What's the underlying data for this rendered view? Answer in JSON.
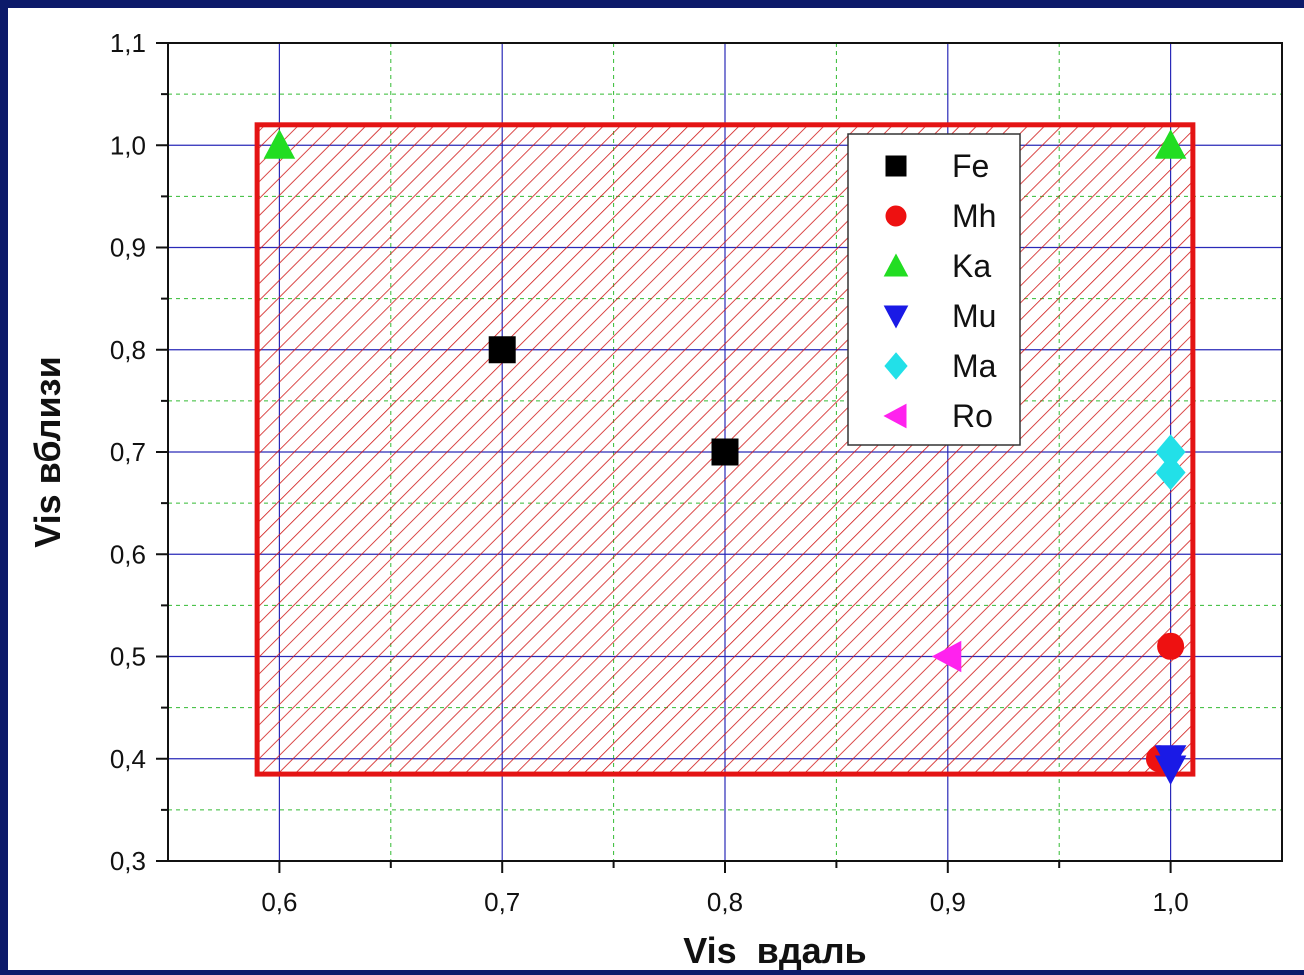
{
  "chart_data": {
    "type": "scatter",
    "xlabel": "Vis  вдаль",
    "ylabel": "Vis вблизи",
    "xlim": [
      0.55,
      1.05
    ],
    "ylim": [
      0.3,
      1.1
    ],
    "x_ticks": [
      "0,6",
      "0,7",
      "0,8",
      "0,9",
      "1,0"
    ],
    "y_ticks": [
      "0,3",
      "0,4",
      "0,5",
      "0,6",
      "0,7",
      "0,8",
      "0,9",
      "1,0",
      "1,1"
    ],
    "x_tick_values": [
      0.6,
      0.7,
      0.8,
      0.9,
      1.0
    ],
    "y_tick_values": [
      0.3,
      0.4,
      0.5,
      0.6,
      0.7,
      0.8,
      0.9,
      1.0,
      1.1
    ],
    "grid": true,
    "legend_position": "top-right",
    "region": {
      "x": [
        0.59,
        1.01
      ],
      "y": [
        0.385,
        1.02
      ],
      "color": "#e41414",
      "fill": "hatched"
    },
    "series": [
      {
        "name": "Fe",
        "marker": "square",
        "color": "#000000",
        "points": [
          [
            0.7,
            0.8
          ],
          [
            0.8,
            0.7
          ]
        ]
      },
      {
        "name": "Mh",
        "marker": "circle",
        "color": "#ee1111",
        "points": [
          [
            1.0,
            0.51
          ],
          [
            0.995,
            0.4
          ]
        ]
      },
      {
        "name": "Ka",
        "marker": "triangle-up",
        "color": "#22dd22",
        "points": [
          [
            0.6,
            1.0
          ],
          [
            1.0,
            1.0
          ]
        ]
      },
      {
        "name": "Mu",
        "marker": "triangle-down",
        "color": "#1a1ae6",
        "points": [
          [
            1.0,
            0.4
          ],
          [
            1.0,
            0.39
          ]
        ]
      },
      {
        "name": "Ma",
        "marker": "diamond",
        "color": "#22e0e8",
        "points": [
          [
            1.0,
            0.7
          ],
          [
            1.0,
            0.68
          ]
        ]
      },
      {
        "name": "Ro",
        "marker": "triangle-left",
        "color": "#ff22ee",
        "points": [
          [
            0.9,
            0.5
          ]
        ]
      }
    ]
  }
}
